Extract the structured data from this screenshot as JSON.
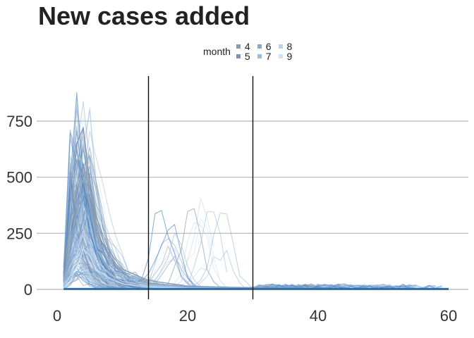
{
  "chart_data": {
    "type": "line",
    "title": "New cases added",
    "xlabel": "",
    "ylabel": "",
    "xlim": [
      0,
      60
    ],
    "ylim": [
      0,
      900
    ],
    "x_ticks": [
      0,
      20,
      40,
      60
    ],
    "y_ticks": [
      0,
      250,
      500,
      750
    ],
    "grid": "horizontal",
    "legend": {
      "title": "month",
      "placement": "top",
      "items": [
        {
          "label": "4",
          "color": "#8a99ab"
        },
        {
          "label": "5",
          "color": "#7e93ad"
        },
        {
          "label": "6",
          "color": "#8aa7c9"
        },
        {
          "label": "7",
          "color": "#9cbde0"
        },
        {
          "label": "8",
          "color": "#b7d3f0"
        },
        {
          "label": "9",
          "color": "#cfe3f7"
        }
      ]
    },
    "vlines": [
      14,
      30
    ],
    "series_summary": "many overlapping daily new-case lines (one per region), peaking near days 2-6 at up to ~900 then decaying toward 0 by day 60",
    "representative_series": [
      {
        "name": "4",
        "x": [
          1,
          2,
          3,
          4,
          5,
          6,
          8,
          10,
          14,
          20,
          30,
          45,
          60
        ],
        "y": [
          60,
          180,
          420,
          560,
          450,
          300,
          150,
          80,
          30,
          12,
          8,
          4,
          2
        ]
      },
      {
        "name": "5",
        "x": [
          1,
          2,
          3,
          4,
          5,
          6,
          8,
          10,
          14,
          20,
          30,
          45,
          60
        ],
        "y": [
          100,
          300,
          650,
          720,
          480,
          320,
          170,
          90,
          40,
          15,
          6,
          3,
          1
        ]
      },
      {
        "name": "6",
        "x": [
          1,
          2,
          3,
          4,
          5,
          6,
          8,
          10,
          14,
          20,
          30,
          45,
          60
        ],
        "y": [
          40,
          150,
          350,
          500,
          390,
          220,
          120,
          70,
          25,
          10,
          5,
          2,
          1
        ]
      },
      {
        "name": "7",
        "x": [
          1,
          2,
          3,
          4,
          5,
          6,
          8,
          10,
          14,
          20,
          30,
          45,
          60
        ],
        "y": [
          20,
          90,
          250,
          380,
          300,
          180,
          95,
          55,
          20,
          9,
          4,
          2,
          1
        ]
      },
      {
        "name": "8",
        "x": [
          1,
          2,
          3,
          4,
          5,
          6,
          8,
          10,
          14,
          20,
          30,
          45,
          60
        ],
        "y": [
          10,
          60,
          160,
          260,
          210,
          130,
          70,
          35,
          15,
          6,
          3,
          1,
          0
        ]
      },
      {
        "name": "9",
        "x": [
          1,
          2,
          3,
          4,
          5,
          6,
          8,
          10,
          14,
          20,
          30,
          45,
          60
        ],
        "y": [
          5,
          35,
          100,
          180,
          150,
          90,
          50,
          25,
          10,
          4,
          2,
          1,
          0
        ]
      }
    ]
  }
}
